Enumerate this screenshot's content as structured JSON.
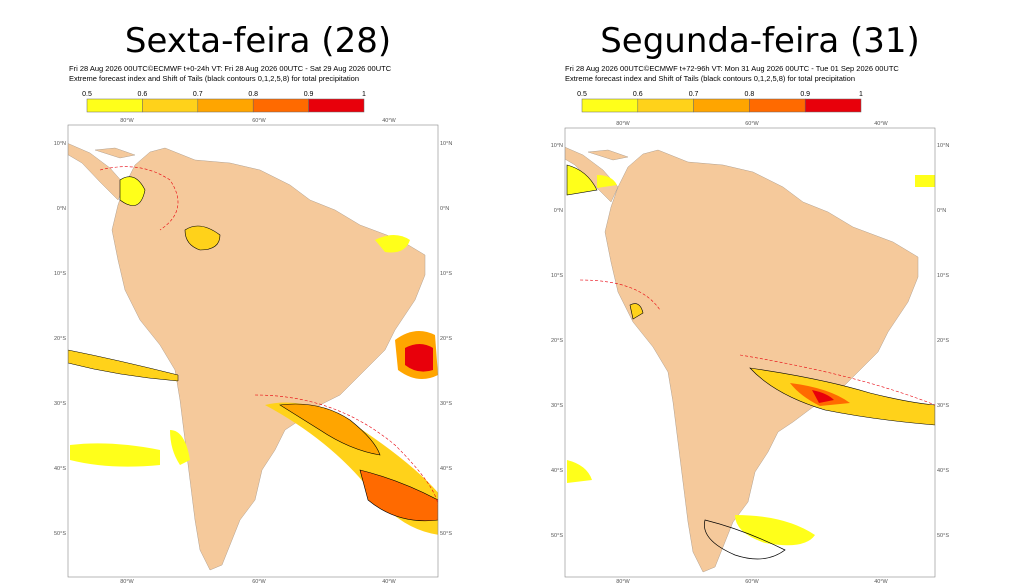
{
  "panels": [
    {
      "title": "Sexta-feira (28)",
      "header": [
        "Fri 28 Aug 2026 00UTC©ECMWF t+0-24h  VT: Fri 28 Aug 2026 00UTC - Sat 29 Aug 2026 00UTC",
        "Extreme forecast index and Shift of Tails (black contours 0,1,2,5,8) for total precipitation"
      ],
      "colorbar": {
        "labels": [
          "0.5",
          "0.6",
          "0.7",
          "0.8",
          "0.9",
          "1"
        ],
        "colors": [
          "#ffff1a",
          "#ffd21a",
          "#ffa500",
          "#ff6a00",
          "#e8000b"
        ]
      },
      "lat_labels": [
        "10°N",
        "0°N",
        "10°S",
        "20°S",
        "30°S",
        "40°S",
        "50°S"
      ],
      "lon_labels": [
        "80°W",
        "60°W",
        "40°W"
      ]
    },
    {
      "title": "Segunda-feira (31)",
      "header": [
        "Fri 28 Aug 2026 00UTC©ECMWF t+72-96h  VT: Mon 31 Aug 2026 00UTC - Tue 01 Sep 2026 00UTC",
        "Extreme forecast index and Shift of Tails (black contours 0,1,2,5,8) for total precipitation"
      ],
      "colorbar": {
        "labels": [
          "0.5",
          "0.6",
          "0.7",
          "0.8",
          "0.9",
          "1"
        ],
        "colors": [
          "#ffff1a",
          "#ffd21a",
          "#ffa500",
          "#ff6a00",
          "#e8000b"
        ]
      },
      "lat_labels": [
        "10°N",
        "0°N",
        "10°S",
        "20°S",
        "30°S",
        "40°S",
        "50°S"
      ],
      "lon_labels": [
        "80°W",
        "60°W",
        "40°W"
      ]
    }
  ]
}
